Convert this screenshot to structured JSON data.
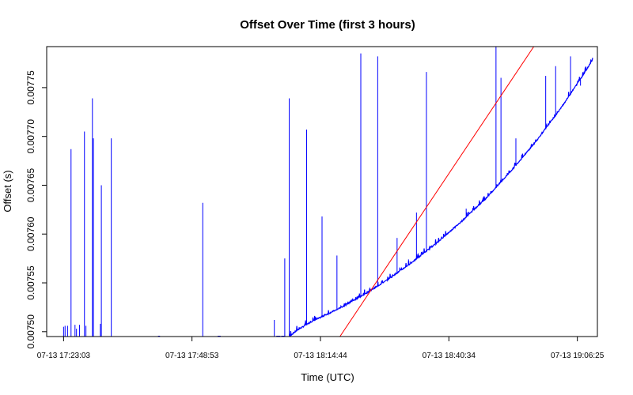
{
  "chart_data": {
    "type": "line",
    "title": "Offset Over Time (first 3 hours)",
    "xlabel": "Time (UTC)",
    "ylabel": "Offset (s)",
    "x_tick_labels": [
      "07-13 17:23:03",
      "07-13 17:48:53",
      "07-13 18:14:44",
      "07-13 18:40:34",
      "07-13 19:06:25"
    ],
    "x_tick_minutes": [
      0,
      25.833,
      51.683,
      77.517,
      103.367
    ],
    "xlim_minutes": [
      -3.4,
      107.4
    ],
    "y_ticks": [
      0.0075,
      0.00755,
      0.0076,
      0.00765,
      0.0077,
      0.00775
    ],
    "y_tick_labels": [
      "0.00750",
      "0.00755",
      "0.00760",
      "0.00765",
      "0.00770",
      "0.00775"
    ],
    "ylim": [
      0.007495,
      0.007792
    ],
    "grid": false,
    "legend": "none",
    "series": [
      {
        "color": "#0000ff",
        "kind": "offset",
        "baseline": [
          {
            "t": 45.5,
            "y": 0.007495
          },
          {
            "t": 47.0,
            "y": 0.007501
          },
          {
            "t": 50.0,
            "y": 0.00751
          },
          {
            "t": 55.0,
            "y": 0.007522
          },
          {
            "t": 60.0,
            "y": 0.007536
          },
          {
            "t": 65.0,
            "y": 0.007552
          },
          {
            "t": 70.0,
            "y": 0.00757
          },
          {
            "t": 75.0,
            "y": 0.00759
          },
          {
            "t": 80.0,
            "y": 0.007612
          },
          {
            "t": 85.0,
            "y": 0.007636
          },
          {
            "t": 90.0,
            "y": 0.007664
          },
          {
            "t": 95.0,
            "y": 0.007694
          },
          {
            "t": 100.0,
            "y": 0.007728
          },
          {
            "t": 105.0,
            "y": 0.007766
          },
          {
            "t": 106.5,
            "y": 0.007779
          }
        ],
        "spikes": [
          {
            "t": 0.0,
            "y": 0.007505
          },
          {
            "t": 0.3,
            "y": 0.007506
          },
          {
            "t": 0.8,
            "y": 0.007506
          },
          {
            "t": 1.5,
            "y": 0.007687
          },
          {
            "t": 2.3,
            "y": 0.007507
          },
          {
            "t": 2.6,
            "y": 0.007503
          },
          {
            "t": 3.2,
            "y": 0.007507
          },
          {
            "t": 4.2,
            "y": 0.007705
          },
          {
            "t": 4.5,
            "y": 0.007506
          },
          {
            "t": 5.8,
            "y": 0.007739
          },
          {
            "t": 6.0,
            "y": 0.007698
          },
          {
            "t": 7.6,
            "y": 0.00765
          },
          {
            "t": 7.4,
            "y": 0.007508
          },
          {
            "t": 9.6,
            "y": 0.007698
          },
          {
            "t": 28.0,
            "y": 0.007632
          },
          {
            "t": 44.5,
            "y": 0.007575
          },
          {
            "t": 45.4,
            "y": 0.007739
          },
          {
            "t": 48.9,
            "y": 0.007707
          },
          {
            "t": 42.4,
            "y": 0.007512
          },
          {
            "t": 52.0,
            "y": 0.007618
          },
          {
            "t": 55.0,
            "y": 0.007578
          },
          {
            "t": 59.8,
            "y": 0.007785
          },
          {
            "t": 63.2,
            "y": 0.007782
          },
          {
            "t": 67.1,
            "y": 0.007596
          },
          {
            "t": 69.4,
            "y": 0.007574
          },
          {
            "t": 73.0,
            "y": 0.007766
          },
          {
            "t": 71.0,
            "y": 0.007622
          },
          {
            "t": 81.0,
            "y": 0.007626
          },
          {
            "t": 87.0,
            "y": 0.007792
          },
          {
            "t": 88.0,
            "y": 0.00776
          },
          {
            "t": 91.0,
            "y": 0.007698
          },
          {
            "t": 97.0,
            "y": 0.007762
          },
          {
            "t": 99.0,
            "y": 0.007772
          },
          {
            "t": 102.0,
            "y": 0.007782
          },
          {
            "t": 104.0,
            "y": 0.007752
          }
        ]
      },
      {
        "color": "#ff0000",
        "kind": "trend",
        "x": [
          55.6,
          94.6
        ],
        "y": [
          0.007495,
          0.007792
        ]
      }
    ]
  }
}
